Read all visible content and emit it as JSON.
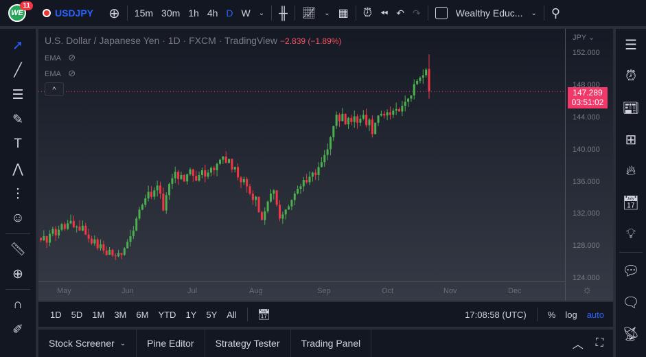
{
  "topbar": {
    "badge": "11",
    "logo": "WE",
    "symbol": "USDJPY",
    "intervals": [
      "15m",
      "30m",
      "1h",
      "4h",
      "D",
      "W"
    ],
    "active_interval": "D",
    "layout_name": "Wealthy Educ..."
  },
  "legend": {
    "title": "U.S. Dollar / Japanese Yen · 1D · FXCM · TradingView",
    "change": "−2.839 (−1.89%)",
    "ema1": "EMA",
    "ema2": "EMA",
    "collapse": "^"
  },
  "price_tag": {
    "price": "147.289",
    "countdown": "03:51:02"
  },
  "colors": {
    "up": "#4caf50",
    "down": "#f23645",
    "accent": "#2962ff"
  },
  "chart_data": {
    "type": "candlestick",
    "currency": "JPY",
    "ylim": [
      124,
      152
    ],
    "y_ticks": [
      "152.000",
      "148.000",
      "144.000",
      "140.000",
      "136.000",
      "132.000",
      "128.000",
      "124.000"
    ],
    "x_ticks": [
      "May",
      "Jun",
      "Jul",
      "Aug",
      "Sep",
      "Oct",
      "Nov",
      "Dec"
    ],
    "closes": [
      128.8,
      129.3,
      128.5,
      129.6,
      130.2,
      129.4,
      130.1,
      130.8,
      130.2,
      130.9,
      131.2,
      130.4,
      130.5,
      130.0,
      130.6,
      129.5,
      129.0,
      128.4,
      128.9,
      127.8,
      128.3,
      127.5,
      127.0,
      127.6,
      126.9,
      126.8,
      127.2,
      127.0,
      127.8,
      128.6,
      129.3,
      130.0,
      131.5,
      132.6,
      133.2,
      134.0,
      134.8,
      134.2,
      135.0,
      135.6,
      134.6,
      132.5,
      134.4,
      135.8,
      136.5,
      137.3,
      136.4,
      136.9,
      136.1,
      137.0,
      137.6,
      136.8,
      136.2,
      136.9,
      137.5,
      136.7,
      137.2,
      137.8,
      137.5,
      138.3,
      138.8,
      139.2,
      138.4,
      138.9,
      137.6,
      137.9,
      136.6,
      136.0,
      136.4,
      135.5,
      134.6,
      133.8,
      134.2,
      132.3,
      131.3,
      132.4,
      133.6,
      134.6,
      135.0,
      133.2,
      131.5,
      132.0,
      132.6,
      133.0,
      133.8,
      134.6,
      135.2,
      135.5,
      136.3,
      136.0,
      136.7,
      137.2,
      136.9,
      137.9,
      138.5,
      139.4,
      140.1,
      141.6,
      143.0,
      144.4,
      143.6,
      144.5,
      143.2,
      144.0,
      143.5,
      144.2,
      143.4,
      143.9,
      144.4,
      143.1,
      143.8,
      142.0,
      143.4,
      144.3,
      144.5,
      144.3,
      144.7,
      144.4,
      144.9,
      145.1,
      144.8,
      145.5,
      146.0,
      146.4,
      146.8,
      148.2,
      148.6,
      149.0,
      149.3,
      150.0
    ],
    "last": {
      "open": 150.1,
      "high": 151.9,
      "low": 146.4,
      "close": 147.289
    }
  },
  "time_axis": {
    "currency_label": "JPY"
  },
  "range": {
    "items": [
      "1D",
      "5D",
      "1M",
      "3M",
      "6M",
      "YTD",
      "1Y",
      "5Y",
      "All"
    ],
    "clock": "17:08:58 (UTC)",
    "percent": "%",
    "log": "log",
    "auto": "auto"
  },
  "bottom_tabs": [
    "Stock Screener",
    "Pine Editor",
    "Strategy Tester",
    "Trading Panel"
  ]
}
